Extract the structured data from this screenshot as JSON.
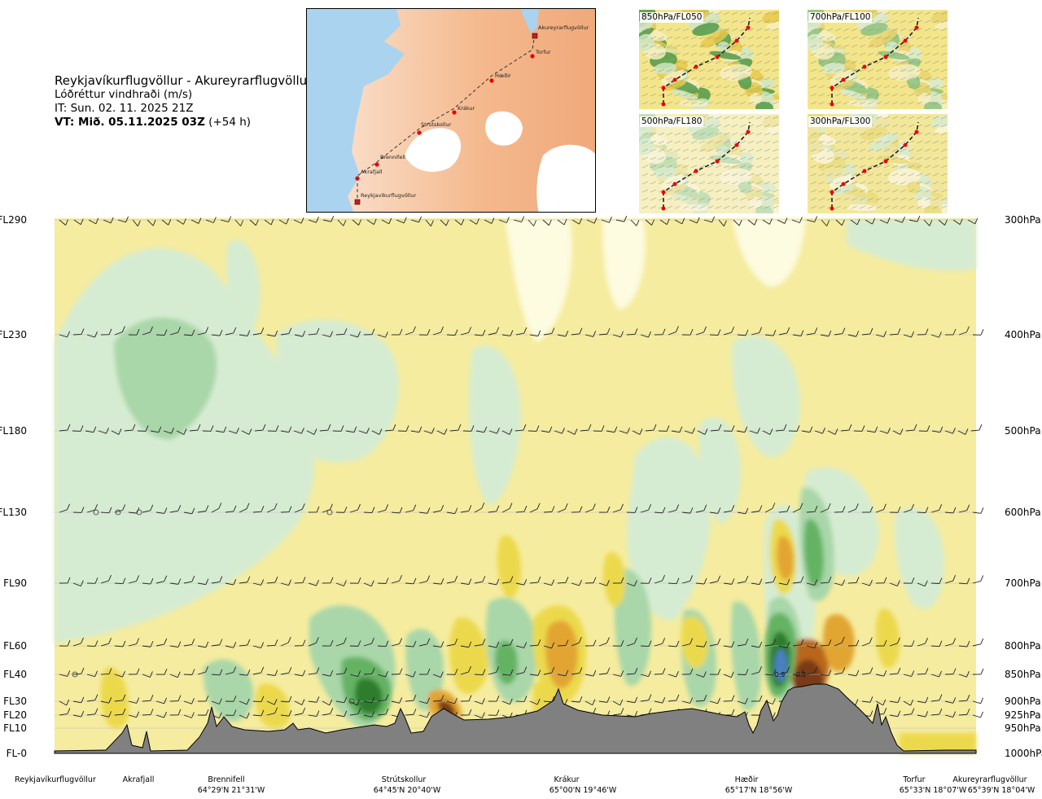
{
  "header": {
    "route": "Reykjavíkurflugvöllur - Akureyrarflugvöllur",
    "variable": "Lóðréttur vindhraði (m/s)",
    "issue_time": "IT: Sun. 02. 11. 2025 21Z",
    "valid_time_bold": "VT: Mið. 05.11.2025 03Z",
    "valid_time_offset": "(+54 h)"
  },
  "map": {
    "waypoints": [
      "Akureyrarflugvöllur",
      "Torfur",
      "Hæðir",
      "Krákur",
      "Strútskollur",
      "Brennifell",
      "Akrafjall",
      "Reykjavíkurflugvöllur"
    ]
  },
  "thumbnails": [
    {
      "label": "850hPa/FL050"
    },
    {
      "label": "700hPa/FL100"
    },
    {
      "label": "500hPa/FL180"
    },
    {
      "label": "300hPa/FL300"
    }
  ],
  "chart_data": {
    "type": "heatmap",
    "title": "Reykjavíkurflugvöllur - Akureyrarflugvöllur",
    "variable": "Lóðréttur vindhraði (m/s)",
    "left_axis_flight_levels": [
      "FL290",
      "FL230",
      "FL180",
      "FL130",
      "FL90",
      "FL60",
      "FL40",
      "FL30",
      "FL20",
      "FL10",
      "FL-0"
    ],
    "right_axis_pressure_levels": [
      "300hPa",
      "400hPa",
      "500hPa",
      "600hPa",
      "700hPa",
      "800hPa",
      "850hPa",
      "900hPa",
      "925hPa",
      "950hPa",
      "1000hPa"
    ],
    "x_waypoints": [
      {
        "name": "Reykjavíkurflugvöllur",
        "coord": ""
      },
      {
        "name": "Akrafjall",
        "coord": ""
      },
      {
        "name": "Brennifell",
        "coord": "64°29'N 21°31'W"
      },
      {
        "name": "Strútskollur",
        "coord": "64°45'N 20°40'W"
      },
      {
        "name": "Krákur",
        "coord": "65°00'N 19°46'W"
      },
      {
        "name": "Hæðir",
        "coord": "65°17'N 18°56'W"
      },
      {
        "name": "Torfur",
        "coord": "65°33'N 18°07'W"
      },
      {
        "name": "Akureyrarflugvöllur",
        "coord": "65°39'N 18°04'W"
      }
    ],
    "annotations": [
      "0.9",
      "0.8"
    ],
    "colors": {
      "strong_down": "#2f7d2f",
      "down": "#63b363",
      "weak_down": "#a9d7a9",
      "very_weak_down": "#d6ecd2",
      "near_zero": "#fdfbe0",
      "weak_up": "#f5ec9f",
      "up": "#ecd94c",
      "moderate_up": "#e2a531",
      "strong_up": "#b8661c",
      "very_strong_up": "#7a3a12",
      "blue_core": "#4b7fc1",
      "terrain": "#808080"
    }
  }
}
